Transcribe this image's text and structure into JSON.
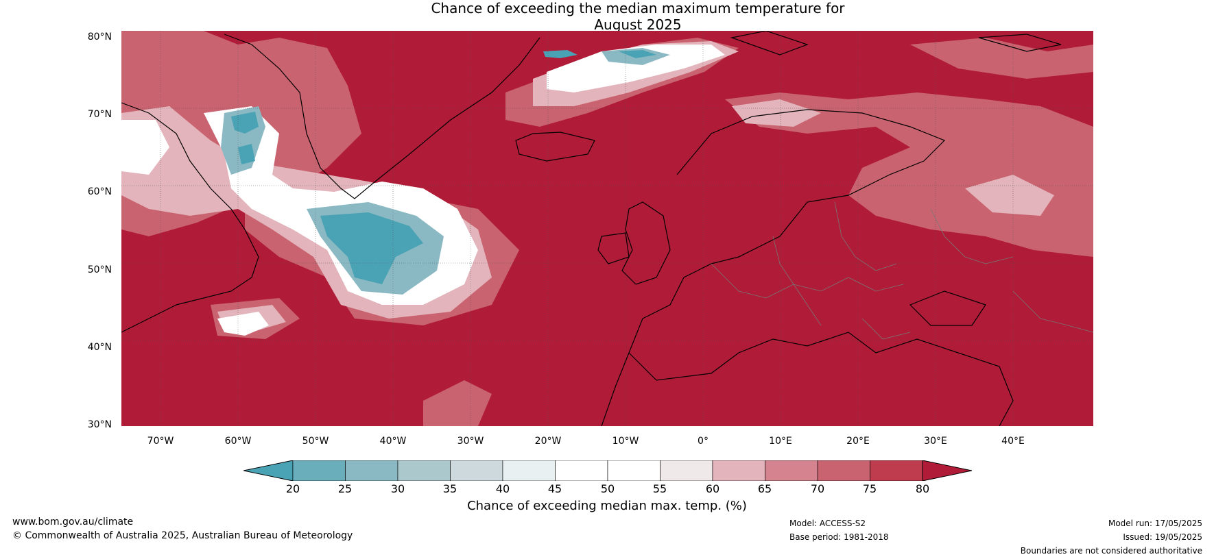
{
  "title_line1": "Chance of exceeding the median maximum temperature for",
  "title_line2": "August 2025",
  "lat_labels": [
    "80°N",
    "70°N",
    "60°N",
    "50°N",
    "40°N",
    "30°N"
  ],
  "lon_labels": [
    "70°W",
    "60°W",
    "50°W",
    "40°W",
    "30°W",
    "20°W",
    "10°W",
    "0°",
    "10°E",
    "20°E",
    "30°E",
    "40°E"
  ],
  "colorbar": {
    "ticks": [
      "20",
      "25",
      "30",
      "35",
      "40",
      "45",
      "50",
      "55",
      "60",
      "65",
      "70",
      "75",
      "80"
    ],
    "colors": [
      "#4aa2b5",
      "#6aaebb",
      "#8bb9c3",
      "#abc8cc",
      "#cdd9dc",
      "#e8f0f1",
      "#ffffff",
      "#ffffff",
      "#efe9ea",
      "#e3b4bb",
      "#d5848f",
      "#c9636f",
      "#bf3c4e",
      "#b01c37"
    ],
    "label": "Chance of exceeding median max. temp. (%)"
  },
  "colors": {
    "high": "#b01c37",
    "mid_high": "#c9636f",
    "low": "#4aa2b5",
    "neutral": "#ffffff"
  },
  "footer": {
    "website": "www.bom.gov.au/climate",
    "copyright": "© Commonwealth of Australia 2025, Australian Bureau of Meteorology",
    "model": "Model: ACCESS-S2",
    "base_period": "Base period: 1981-2018",
    "model_run": "Model run: 17/05/2025",
    "issued": "Issued: 19/05/2025",
    "disclaimer": "Boundaries are not considered authoritative"
  }
}
